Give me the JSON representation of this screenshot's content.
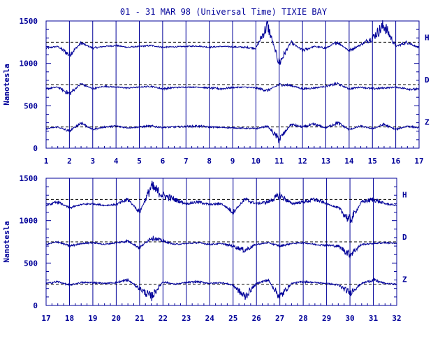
{
  "title": "01 - 31 MAR 98 (Universal Time) TIXIE BAY",
  "colors": {
    "ink": "#000099",
    "background": "#ffffff"
  },
  "chart_data": [
    {
      "type": "line",
      "title": "01 - 31 MAR 98 (Universal Time) TIXIE BAY",
      "ylabel": "Nanotesla",
      "xlabel": "",
      "xlim": [
        1,
        17
      ],
      "ylim": [
        0,
        1500
      ],
      "x_ticks": [
        "1",
        "2",
        "3",
        "4",
        "5",
        "6",
        "7",
        "8",
        "9",
        "10",
        "11",
        "12",
        "13",
        "14",
        "15",
        "16",
        "17"
      ],
      "y_ticks": [
        "0",
        "500",
        "1000",
        "1500"
      ],
      "grid": "vertical lines at each day",
      "reference_lines": [
        {
          "name": "H",
          "y": 1250
        },
        {
          "name": "D",
          "y": 750
        },
        {
          "name": "Z",
          "y": 250
        }
      ],
      "series": [
        {
          "name": "H",
          "baseline": 1200,
          "x": [
            1,
            1.5,
            2,
            2.5,
            3,
            3.5,
            4,
            4.5,
            5,
            5.5,
            6,
            6.5,
            7,
            7.5,
            8,
            8.5,
            9,
            9.5,
            10,
            10.5,
            11,
            11.5,
            12,
            12.5,
            13,
            13.5,
            14,
            14.5,
            15,
            15.5,
            16,
            16.5,
            17
          ],
          "y": [
            1180,
            1200,
            1100,
            1240,
            1180,
            1200,
            1210,
            1190,
            1200,
            1210,
            1190,
            1195,
            1200,
            1205,
            1190,
            1200,
            1195,
            1190,
            1180,
            1450,
            1000,
            1250,
            1150,
            1200,
            1180,
            1250,
            1150,
            1220,
            1300,
            1450,
            1200,
            1250,
            1180
          ]
        },
        {
          "name": "D",
          "baseline": 720,
          "x": [
            1,
            1.5,
            2,
            2.5,
            3,
            3.5,
            4,
            4.5,
            5,
            5.5,
            6,
            6.5,
            7,
            7.5,
            8,
            8.5,
            9,
            9.5,
            10,
            10.5,
            11,
            11.5,
            12,
            12.5,
            13,
            13.5,
            14,
            14.5,
            15,
            15.5,
            16,
            16.5,
            17
          ],
          "y": [
            700,
            720,
            640,
            760,
            700,
            730,
            720,
            710,
            720,
            730,
            700,
            715,
            720,
            720,
            710,
            700,
            715,
            720,
            710,
            680,
            750,
            740,
            700,
            710,
            730,
            760,
            700,
            720,
            700,
            710,
            720,
            700,
            690
          ]
        },
        {
          "name": "Z",
          "baseline": 240,
          "x": [
            1,
            1.5,
            2,
            2.5,
            3,
            3.5,
            4,
            4.5,
            5,
            5.5,
            6,
            6.5,
            7,
            7.5,
            8,
            8.5,
            9,
            9.5,
            10,
            10.5,
            11,
            11.5,
            12,
            12.5,
            13,
            13.5,
            14,
            14.5,
            15,
            15.5,
            16,
            16.5,
            17
          ],
          "y": [
            230,
            250,
            200,
            300,
            220,
            250,
            260,
            240,
            250,
            260,
            245,
            250,
            255,
            260,
            250,
            245,
            240,
            235,
            230,
            260,
            100,
            280,
            250,
            280,
            240,
            300,
            220,
            260,
            230,
            280,
            220,
            260,
            240
          ]
        }
      ]
    },
    {
      "type": "line",
      "title": "",
      "ylabel": "Nanotesla",
      "xlabel": "",
      "xlim": [
        17,
        32
      ],
      "ylim": [
        0,
        1500
      ],
      "x_ticks": [
        "17",
        "18",
        "19",
        "20",
        "21",
        "22",
        "23",
        "24",
        "25",
        "26",
        "27",
        "28",
        "29",
        "30",
        "31",
        "32"
      ],
      "y_ticks": [
        "0",
        "500",
        "1000",
        "1500"
      ],
      "grid": "vertical lines at each day",
      "reference_lines": [
        {
          "name": "H",
          "y": 1250
        },
        {
          "name": "D",
          "y": 750
        },
        {
          "name": "Z",
          "y": 250
        }
      ],
      "series": [
        {
          "name": "H",
          "baseline": 1180,
          "x": [
            17,
            17.5,
            18,
            18.5,
            19,
            19.5,
            20,
            20.5,
            21,
            21.5,
            22,
            22.5,
            23,
            23.5,
            24,
            24.5,
            25,
            25.5,
            26,
            26.5,
            27,
            27.5,
            28,
            28.5,
            29,
            29.5,
            30,
            30.5,
            31,
            31.5,
            32
          ],
          "y": [
            1180,
            1220,
            1150,
            1190,
            1200,
            1180,
            1190,
            1250,
            1100,
            1400,
            1300,
            1250,
            1200,
            1220,
            1190,
            1200,
            1100,
            1250,
            1200,
            1220,
            1300,
            1200,
            1220,
            1250,
            1200,
            1150,
            1000,
            1220,
            1250,
            1200,
            1180
          ]
        },
        {
          "name": "D",
          "baseline": 730,
          "x": [
            17,
            17.5,
            18,
            18.5,
            19,
            19.5,
            20,
            20.5,
            21,
            21.5,
            22,
            22.5,
            23,
            23.5,
            24,
            24.5,
            25,
            25.5,
            26,
            26.5,
            27,
            27.5,
            28,
            28.5,
            29,
            29.5,
            30,
            30.5,
            31,
            31.5,
            32
          ],
          "y": [
            720,
            750,
            700,
            730,
            740,
            720,
            740,
            760,
            680,
            800,
            760,
            720,
            730,
            740,
            720,
            730,
            700,
            650,
            720,
            740,
            700,
            730,
            740,
            720,
            710,
            700,
            600,
            720,
            730,
            740,
            730
          ]
        },
        {
          "name": "Z",
          "baseline": 260,
          "x": [
            17,
            17.5,
            18,
            18.5,
            19,
            19.5,
            20,
            20.5,
            21,
            21.5,
            22,
            22.5,
            23,
            23.5,
            24,
            24.5,
            25,
            25.5,
            26,
            26.5,
            27,
            27.5,
            28,
            28.5,
            29,
            29.5,
            30,
            30.5,
            31,
            31.5,
            32
          ],
          "y": [
            260,
            280,
            240,
            270,
            270,
            260,
            270,
            300,
            200,
            100,
            280,
            250,
            270,
            280,
            260,
            270,
            240,
            100,
            260,
            300,
            100,
            260,
            280,
            270,
            260,
            240,
            150,
            260,
            300,
            260,
            250
          ]
        }
      ]
    }
  ]
}
